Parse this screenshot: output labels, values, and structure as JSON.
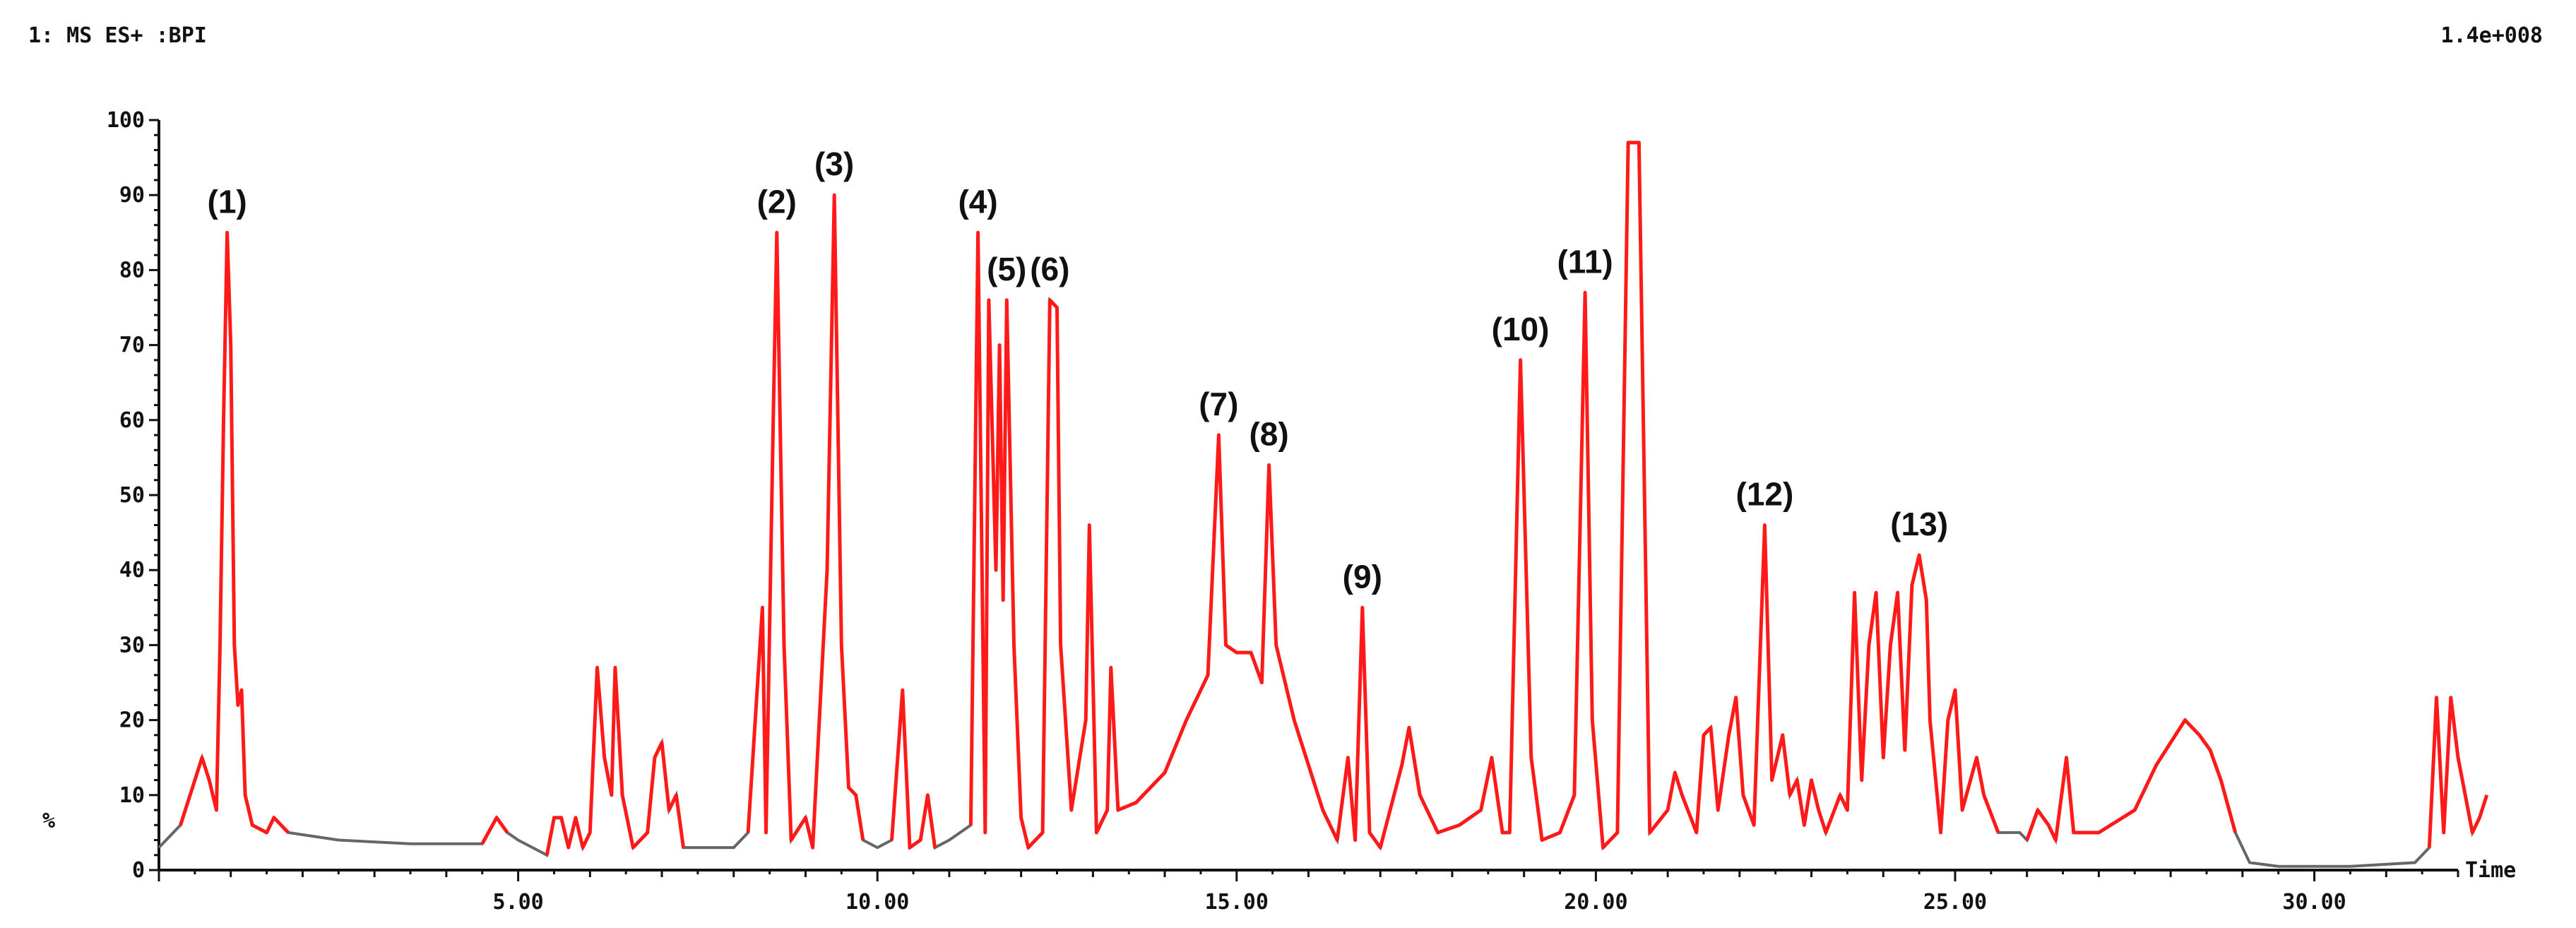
{
  "header": {
    "trace_label": "1: MS ES+ :BPI",
    "intensity": "1.4e+008"
  },
  "chart_data": {
    "type": "line",
    "title": "",
    "xlabel": "Time",
    "ylabel": "%",
    "xlim": [
      0,
      32.0
    ],
    "ylim": [
      0,
      100
    ],
    "grid": false,
    "x_ticks": [
      5.0,
      10.0,
      15.0,
      20.0,
      25.0,
      30.0
    ],
    "x_tick_labels": [
      "5.00",
      "10.00",
      "15.00",
      "20.00",
      "25.00",
      "30.00"
    ],
    "y_ticks": [
      0,
      10,
      20,
      30,
      40,
      50,
      60,
      70,
      80,
      90,
      100
    ],
    "y_tick_labels": [
      "0",
      "10",
      "20",
      "30",
      "40",
      "50",
      "60",
      "70",
      "80",
      "90",
      "100"
    ],
    "colors": {
      "baseline": "#666666",
      "peaks": "#ff1a1a",
      "axis": "#111111"
    },
    "series": [
      {
        "points": [
          [
            0.0,
            3
          ],
          [
            0.3,
            6
          ],
          [
            0.5,
            12
          ],
          [
            0.6,
            15
          ],
          [
            0.7,
            12
          ],
          [
            0.8,
            8
          ],
          [
            0.85,
            30
          ],
          [
            0.9,
            60
          ],
          [
            0.95,
            85
          ],
          [
            1.0,
            70
          ],
          [
            1.05,
            30
          ],
          [
            1.1,
            22
          ],
          [
            1.15,
            24
          ],
          [
            1.2,
            10
          ],
          [
            1.3,
            6
          ],
          [
            1.5,
            5
          ],
          [
            1.6,
            7
          ],
          [
            1.8,
            5
          ],
          [
            2.5,
            4
          ],
          [
            3.5,
            3.5
          ],
          [
            4.5,
            3.5
          ],
          [
            4.7,
            7
          ],
          [
            4.85,
            5
          ],
          [
            5.0,
            4
          ],
          [
            5.2,
            3
          ],
          [
            5.4,
            2
          ],
          [
            5.5,
            7
          ],
          [
            5.6,
            7
          ],
          [
            5.7,
            3
          ],
          [
            5.8,
            7
          ],
          [
            5.9,
            3
          ],
          [
            6.0,
            5
          ],
          [
            6.1,
            27
          ],
          [
            6.2,
            15
          ],
          [
            6.3,
            10
          ],
          [
            6.35,
            27
          ],
          [
            6.45,
            10
          ],
          [
            6.6,
            3
          ],
          [
            6.8,
            5
          ],
          [
            6.9,
            15
          ],
          [
            7.0,
            17
          ],
          [
            7.1,
            8
          ],
          [
            7.2,
            10
          ],
          [
            7.3,
            3
          ],
          [
            7.6,
            3
          ],
          [
            8.0,
            3
          ],
          [
            8.2,
            5
          ],
          [
            8.4,
            35
          ],
          [
            8.45,
            5
          ],
          [
            8.55,
            60
          ],
          [
            8.6,
            85
          ],
          [
            8.7,
            30
          ],
          [
            8.8,
            4
          ],
          [
            9.0,
            7
          ],
          [
            9.1,
            3
          ],
          [
            9.3,
            40
          ],
          [
            9.4,
            90
          ],
          [
            9.5,
            30
          ],
          [
            9.6,
            11
          ],
          [
            9.7,
            10
          ],
          [
            9.8,
            4
          ],
          [
            10.0,
            3
          ],
          [
            10.2,
            4
          ],
          [
            10.35,
            24
          ],
          [
            10.45,
            3
          ],
          [
            10.6,
            4
          ],
          [
            10.7,
            10
          ],
          [
            10.8,
            3
          ],
          [
            11.0,
            4
          ],
          [
            11.3,
            6
          ],
          [
            11.4,
            85
          ],
          [
            11.5,
            5
          ],
          [
            11.55,
            76
          ],
          [
            11.65,
            40
          ],
          [
            11.7,
            70
          ],
          [
            11.75,
            36
          ],
          [
            11.8,
            76
          ],
          [
            11.9,
            30
          ],
          [
            12.0,
            7
          ],
          [
            12.1,
            3
          ],
          [
            12.3,
            5
          ],
          [
            12.4,
            76
          ],
          [
            12.5,
            75
          ],
          [
            12.55,
            30
          ],
          [
            12.7,
            8
          ],
          [
            12.9,
            20
          ],
          [
            12.95,
            46
          ],
          [
            13.05,
            5
          ],
          [
            13.2,
            8
          ],
          [
            13.25,
            27
          ],
          [
            13.35,
            8
          ],
          [
            13.6,
            9
          ],
          [
            14.0,
            13
          ],
          [
            14.3,
            20
          ],
          [
            14.6,
            26
          ],
          [
            14.75,
            58
          ],
          [
            14.85,
            30
          ],
          [
            15.0,
            29
          ],
          [
            15.2,
            29
          ],
          [
            15.35,
            25
          ],
          [
            15.45,
            54
          ],
          [
            15.55,
            30
          ],
          [
            15.8,
            20
          ],
          [
            16.2,
            8
          ],
          [
            16.4,
            4
          ],
          [
            16.55,
            15
          ],
          [
            16.65,
            4
          ],
          [
            16.75,
            35
          ],
          [
            16.85,
            5
          ],
          [
            17.0,
            3
          ],
          [
            17.3,
            14
          ],
          [
            17.4,
            19
          ],
          [
            17.55,
            10
          ],
          [
            17.8,
            5
          ],
          [
            18.1,
            6
          ],
          [
            18.4,
            8
          ],
          [
            18.55,
            15
          ],
          [
            18.7,
            5
          ],
          [
            18.8,
            5
          ],
          [
            18.95,
            68
          ],
          [
            19.1,
            15
          ],
          [
            19.25,
            4
          ],
          [
            19.5,
            5
          ],
          [
            19.7,
            10
          ],
          [
            19.85,
            77
          ],
          [
            19.95,
            20
          ],
          [
            20.1,
            3
          ],
          [
            20.3,
            5
          ],
          [
            20.45,
            97
          ],
          [
            20.6,
            97
          ],
          [
            20.75,
            5
          ],
          [
            21.0,
            8
          ],
          [
            21.1,
            13
          ],
          [
            21.2,
            10
          ],
          [
            21.4,
            5
          ],
          [
            21.5,
            18
          ],
          [
            21.6,
            19
          ],
          [
            21.7,
            8
          ],
          [
            21.85,
            18
          ],
          [
            21.95,
            23
          ],
          [
            22.05,
            10
          ],
          [
            22.2,
            6
          ],
          [
            22.35,
            46
          ],
          [
            22.45,
            12
          ],
          [
            22.6,
            18
          ],
          [
            22.7,
            10
          ],
          [
            22.8,
            12
          ],
          [
            22.9,
            6
          ],
          [
            23.0,
            12
          ],
          [
            23.1,
            8
          ],
          [
            23.2,
            5
          ],
          [
            23.4,
            10
          ],
          [
            23.5,
            8
          ],
          [
            23.6,
            37
          ],
          [
            23.7,
            12
          ],
          [
            23.8,
            30
          ],
          [
            23.9,
            37
          ],
          [
            24.0,
            15
          ],
          [
            24.1,
            30
          ],
          [
            24.2,
            37
          ],
          [
            24.3,
            16
          ],
          [
            24.4,
            38
          ],
          [
            24.5,
            42
          ],
          [
            24.6,
            36
          ],
          [
            24.65,
            20
          ],
          [
            24.8,
            5
          ],
          [
            24.9,
            20
          ],
          [
            25.0,
            24
          ],
          [
            25.1,
            8
          ],
          [
            25.3,
            15
          ],
          [
            25.4,
            10
          ],
          [
            25.6,
            5
          ],
          [
            25.9,
            5
          ],
          [
            26.0,
            4
          ],
          [
            26.15,
            8
          ],
          [
            26.3,
            6
          ],
          [
            26.4,
            4
          ],
          [
            26.55,
            15
          ],
          [
            26.65,
            5
          ],
          [
            27.0,
            5
          ],
          [
            27.5,
            8
          ],
          [
            27.8,
            14
          ],
          [
            28.0,
            17
          ],
          [
            28.2,
            20
          ],
          [
            28.4,
            18
          ],
          [
            28.55,
            16
          ],
          [
            28.7,
            12
          ],
          [
            28.9,
            5
          ],
          [
            29.1,
            1
          ],
          [
            29.5,
            0.5
          ],
          [
            30.5,
            0.5
          ],
          [
            31.4,
            1
          ],
          [
            31.6,
            3
          ],
          [
            31.7,
            23
          ],
          [
            31.8,
            5
          ],
          [
            31.9,
            23
          ],
          [
            32.0,
            15
          ],
          [
            32.1,
            10
          ],
          [
            32.2,
            5
          ],
          [
            32.3,
            7
          ],
          [
            32.4,
            10
          ]
        ]
      }
    ],
    "annotations": [
      {
        "text": "(1)",
        "x": 0.95,
        "y": 85
      },
      {
        "text": "(2)",
        "x": 8.6,
        "y": 85
      },
      {
        "text": "(3)",
        "x": 9.4,
        "y": 90
      },
      {
        "text": "(4)",
        "x": 11.4,
        "y": 85
      },
      {
        "text": "(5)",
        "x": 11.8,
        "y": 76
      },
      {
        "text": "(6)",
        "x": 12.4,
        "y": 76
      },
      {
        "text": "(7)",
        "x": 14.75,
        "y": 58
      },
      {
        "text": "(8)",
        "x": 15.45,
        "y": 54
      },
      {
        "text": "(9)",
        "x": 16.75,
        "y": 35
      },
      {
        "text": "(10)",
        "x": 18.95,
        "y": 68
      },
      {
        "text": "(11)",
        "x": 19.85,
        "y": 77
      },
      {
        "text": "(12)",
        "x": 22.35,
        "y": 46
      },
      {
        "text": "(13)",
        "x": 24.5,
        "y": 42
      }
    ]
  }
}
